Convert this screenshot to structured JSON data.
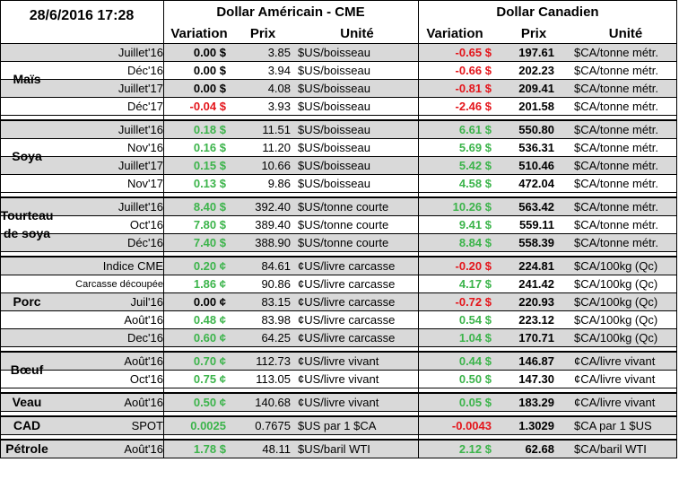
{
  "header": {
    "timestamp": "28/6/2016 17:28",
    "usd_title": "Dollar Américain - CME",
    "cad_title": "Dollar Canadien",
    "col_variation": "Variation",
    "col_prix": "Prix",
    "col_unite": "Unité"
  },
  "colors": {
    "positive": "#3cb44b",
    "negative": "#e4151b",
    "row_alt": "#d9d9d9"
  },
  "groups": [
    {
      "name": "Maïs",
      "rows": [
        {
          "month": "Juillet'16",
          "var": "0.00 $",
          "vs": "zero",
          "px": "3.85",
          "unit": "$US/boisseau",
          "var2": "-0.65 $",
          "vs2": "neg",
          "px2": "197.61",
          "unit2": "$CA/tonne métr."
        },
        {
          "month": "Déc'16",
          "var": "0.00 $",
          "vs": "zero",
          "px": "3.94",
          "unit": "$US/boisseau",
          "var2": "-0.66 $",
          "vs2": "neg",
          "px2": "202.23",
          "unit2": "$CA/tonne métr."
        },
        {
          "month": "Juillet'17",
          "var": "0.00 $",
          "vs": "zero",
          "px": "4.08",
          "unit": "$US/boisseau",
          "var2": "-0.81 $",
          "vs2": "neg",
          "px2": "209.41",
          "unit2": "$CA/tonne métr."
        },
        {
          "month": "Déc'17",
          "var": "-0.04 $",
          "vs": "neg",
          "px": "3.93",
          "unit": "$US/boisseau",
          "var2": "-2.46 $",
          "vs2": "neg",
          "px2": "201.58",
          "unit2": "$CA/tonne métr."
        }
      ]
    },
    {
      "name": "Soya",
      "rows": [
        {
          "month": "Juillet'16",
          "var": "0.18 $",
          "vs": "pos",
          "px": "11.51",
          "unit": "$US/boisseau",
          "var2": "6.61 $",
          "vs2": "pos",
          "px2": "550.80",
          "unit2": "$CA/tonne métr."
        },
        {
          "month": "Nov'16",
          "var": "0.16 $",
          "vs": "pos",
          "px": "11.20",
          "unit": "$US/boisseau",
          "var2": "5.69 $",
          "vs2": "pos",
          "px2": "536.31",
          "unit2": "$CA/tonne métr."
        },
        {
          "month": "Juillet'17",
          "var": "0.15 $",
          "vs": "pos",
          "px": "10.66",
          "unit": "$US/boisseau",
          "var2": "5.42 $",
          "vs2": "pos",
          "px2": "510.46",
          "unit2": "$CA/tonne métr."
        },
        {
          "month": "Nov'17",
          "var": "0.13 $",
          "vs": "pos",
          "px": "9.86",
          "unit": "$US/boisseau",
          "var2": "4.58 $",
          "vs2": "pos",
          "px2": "472.04",
          "unit2": "$CA/tonne métr."
        }
      ]
    },
    {
      "name": "Tourteau de soya",
      "rows": [
        {
          "month": "Juillet'16",
          "var": "8.40 $",
          "vs": "pos",
          "px": "392.40",
          "unit": "$US/tonne courte",
          "var2": "10.26 $",
          "vs2": "pos",
          "px2": "563.42",
          "unit2": "$CA/tonne métr."
        },
        {
          "month": "Oct'16",
          "var": "7.80 $",
          "vs": "pos",
          "px": "389.40",
          "unit": "$US/tonne courte",
          "var2": "9.41 $",
          "vs2": "pos",
          "px2": "559.11",
          "unit2": "$CA/tonne métr."
        },
        {
          "month": "Déc'16",
          "var": "7.40 $",
          "vs": "pos",
          "px": "388.90",
          "unit": "$US/tonne courte",
          "var2": "8.84 $",
          "vs2": "pos",
          "px2": "558.39",
          "unit2": "$CA/tonne métr."
        }
      ]
    },
    {
      "name": "Porc",
      "rows": [
        {
          "month": "Indice CME",
          "var": "0.20 ¢",
          "vs": "pos",
          "px": "84.61",
          "unit": "¢US/livre carcasse",
          "var2": "-0.20 $",
          "vs2": "neg",
          "px2": "224.81",
          "unit2": "$CA/100kg (Qc)"
        },
        {
          "month": "Carcasse découpée",
          "var": "1.86 ¢",
          "vs": "pos",
          "px": "90.86",
          "unit": "¢US/livre carcasse",
          "var2": "4.17 $",
          "vs2": "pos",
          "px2": "241.42",
          "unit2": "$CA/100kg (Qc)"
        },
        {
          "month": "Juil'16",
          "var": "0.00 ¢",
          "vs": "zero",
          "px": "83.15",
          "unit": "¢US/livre carcasse",
          "var2": "-0.72 $",
          "vs2": "neg",
          "px2": "220.93",
          "unit2": "$CA/100kg (Qc)"
        },
        {
          "month": "Août'16",
          "var": "0.48 ¢",
          "vs": "pos",
          "px": "83.98",
          "unit": "¢US/livre carcasse",
          "var2": "0.54 $",
          "vs2": "pos",
          "px2": "223.12",
          "unit2": "$CA/100kg (Qc)"
        },
        {
          "month": "Dec'16",
          "var": "0.60 ¢",
          "vs": "pos",
          "px": "64.25",
          "unit": "¢US/livre carcasse",
          "var2": "1.04 $",
          "vs2": "pos",
          "px2": "170.71",
          "unit2": "$CA/100kg (Qc)"
        }
      ]
    },
    {
      "name": "Bœuf",
      "rows": [
        {
          "month": "Août'16",
          "var": "0.70 ¢",
          "vs": "pos",
          "px": "112.73",
          "unit": "¢US/livre vivant",
          "var2": "0.44 $",
          "vs2": "pos",
          "px2": "146.87",
          "unit2": "¢CA/livre vivant"
        },
        {
          "month": "Oct'16",
          "var": "0.75 ¢",
          "vs": "pos",
          "px": "113.05",
          "unit": "¢US/livre vivant",
          "var2": "0.50 $",
          "vs2": "pos",
          "px2": "147.30",
          "unit2": "¢CA/livre vivant"
        }
      ]
    },
    {
      "name": "Veau",
      "rows": [
        {
          "month": "Août'16",
          "var": "0.50 ¢",
          "vs": "pos",
          "px": "140.68",
          "unit": "¢US/livre vivant",
          "var2": "0.05 $",
          "vs2": "pos",
          "px2": "183.29",
          "unit2": "¢CA/livre vivant"
        }
      ]
    },
    {
      "name": "CAD",
      "rows": [
        {
          "month": "SPOT",
          "var": "0.0025",
          "vs": "pos",
          "px": "0.7675",
          "unit": "$US par 1 $CA",
          "var2": "-0.0043",
          "vs2": "neg",
          "px2": "1.3029",
          "unit2": "$CA par 1 $US"
        }
      ]
    },
    {
      "name": "Pétrole",
      "rows": [
        {
          "month": "Août'16",
          "var": "1.78 $",
          "vs": "pos",
          "px": "48.11",
          "unit": "$US/baril WTI",
          "var2": "2.12 $",
          "vs2": "pos",
          "px2": "62.68",
          "unit2": "$CA/baril WTI"
        }
      ]
    }
  ]
}
